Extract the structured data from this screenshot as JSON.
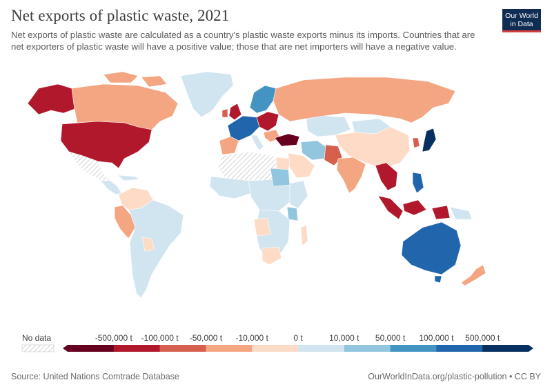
{
  "header": {
    "title": "Net exports of plastic waste, 2021",
    "subtitle": "Net exports of plastic waste are calculated as a country's plastic waste exports minus its imports. Countries that are net exporters of plastic waste will have a positive value; those that are net importers will have a negative value."
  },
  "logo": {
    "line1": "Our World",
    "line2": "in Data",
    "bg_color": "#0f2c52",
    "accent_color": "#d73c3c"
  },
  "legend": {
    "no_data_label": "No data",
    "bins": [
      {
        "label": "-500,000 t",
        "color": "#67001f"
      },
      {
        "label": "-100,000 t",
        "color": "#b2182b"
      },
      {
        "label": "-50,000 t",
        "color": "#d6604d"
      },
      {
        "label": "-10,000 t",
        "color": "#f4a582"
      },
      {
        "label": "0 t",
        "color": "#fddbc7"
      },
      {
        "label": "10,000 t",
        "color": "#d1e5f0"
      },
      {
        "label": "50,000 t",
        "color": "#92c5de"
      },
      {
        "label": "100,000 t",
        "color": "#4393c3"
      },
      {
        "label": "500,000 t",
        "color": "#2166ac"
      },
      {
        "label": "",
        "color": "#053061"
      }
    ]
  },
  "footer": {
    "source": "Source: United Nations Comtrade Database",
    "credit": "OurWorldInData.org/plastic-pollution • CC BY"
  }
}
